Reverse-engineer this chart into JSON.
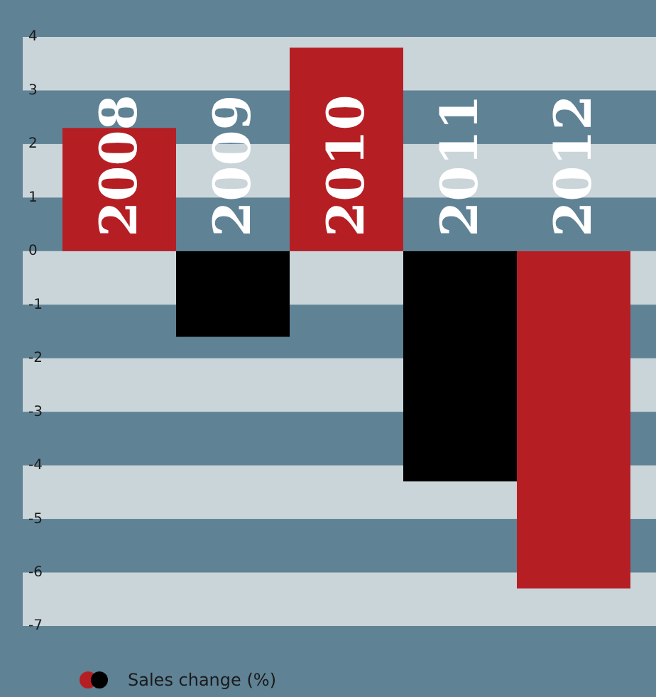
{
  "chart_data": {
    "type": "bar",
    "categories": [
      "2008",
      "2009",
      "2010",
      "2011",
      "2012"
    ],
    "series": [
      {
        "name": "Sales change (%)",
        "colors": [
          "#b51f24",
          "#000000",
          "#b51f24",
          "#000000",
          "#b51f24"
        ],
        "values": [
          2.3,
          -1.6,
          3.8,
          -4.3,
          -6.3
        ]
      }
    ],
    "ylim": [
      -7,
      4
    ],
    "yticks": [
      -7,
      -6,
      -5,
      -4,
      -3,
      -2,
      -1,
      0,
      1,
      2,
      3,
      4
    ],
    "legend": "bottom left"
  }
}
